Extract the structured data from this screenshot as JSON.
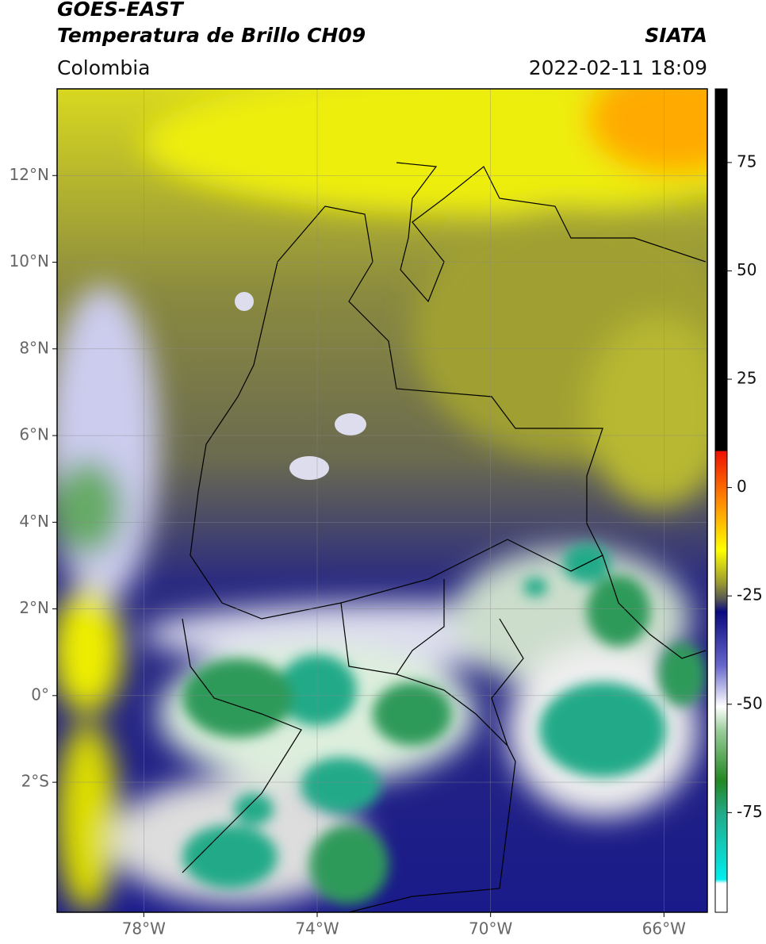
{
  "header": {
    "title": "GOES-EAST",
    "subtitle": "Temperatura de Brillo CH09",
    "source": "SIATA",
    "region": "Colombia",
    "datetime": "2022-02-11 18:09"
  },
  "map": {
    "lonlim": [
      -80,
      -65
    ],
    "latlim": [
      -5,
      14
    ],
    "lonticks": [
      {
        "value": -78,
        "label": "78°W"
      },
      {
        "value": -74,
        "label": "74°W"
      },
      {
        "value": -70,
        "label": "70°W"
      },
      {
        "value": -66,
        "label": "66°W"
      }
    ],
    "latticks": [
      {
        "value": 12,
        "label": "12°N"
      },
      {
        "value": 10,
        "label": "10°N"
      },
      {
        "value": 8,
        "label": "8°N"
      },
      {
        "value": 6,
        "label": "6°N"
      },
      {
        "value": 4,
        "label": "4°N"
      },
      {
        "value": 2,
        "label": "2°N"
      },
      {
        "value": 0,
        "label": "0°"
      },
      {
        "value": -2,
        "label": "2°S"
      }
    ],
    "grid": true
  },
  "colorbar": {
    "lim": [
      -98,
      92
    ],
    "ticks": [
      75,
      50,
      25,
      0,
      -25,
      -50,
      -75
    ]
  }
}
